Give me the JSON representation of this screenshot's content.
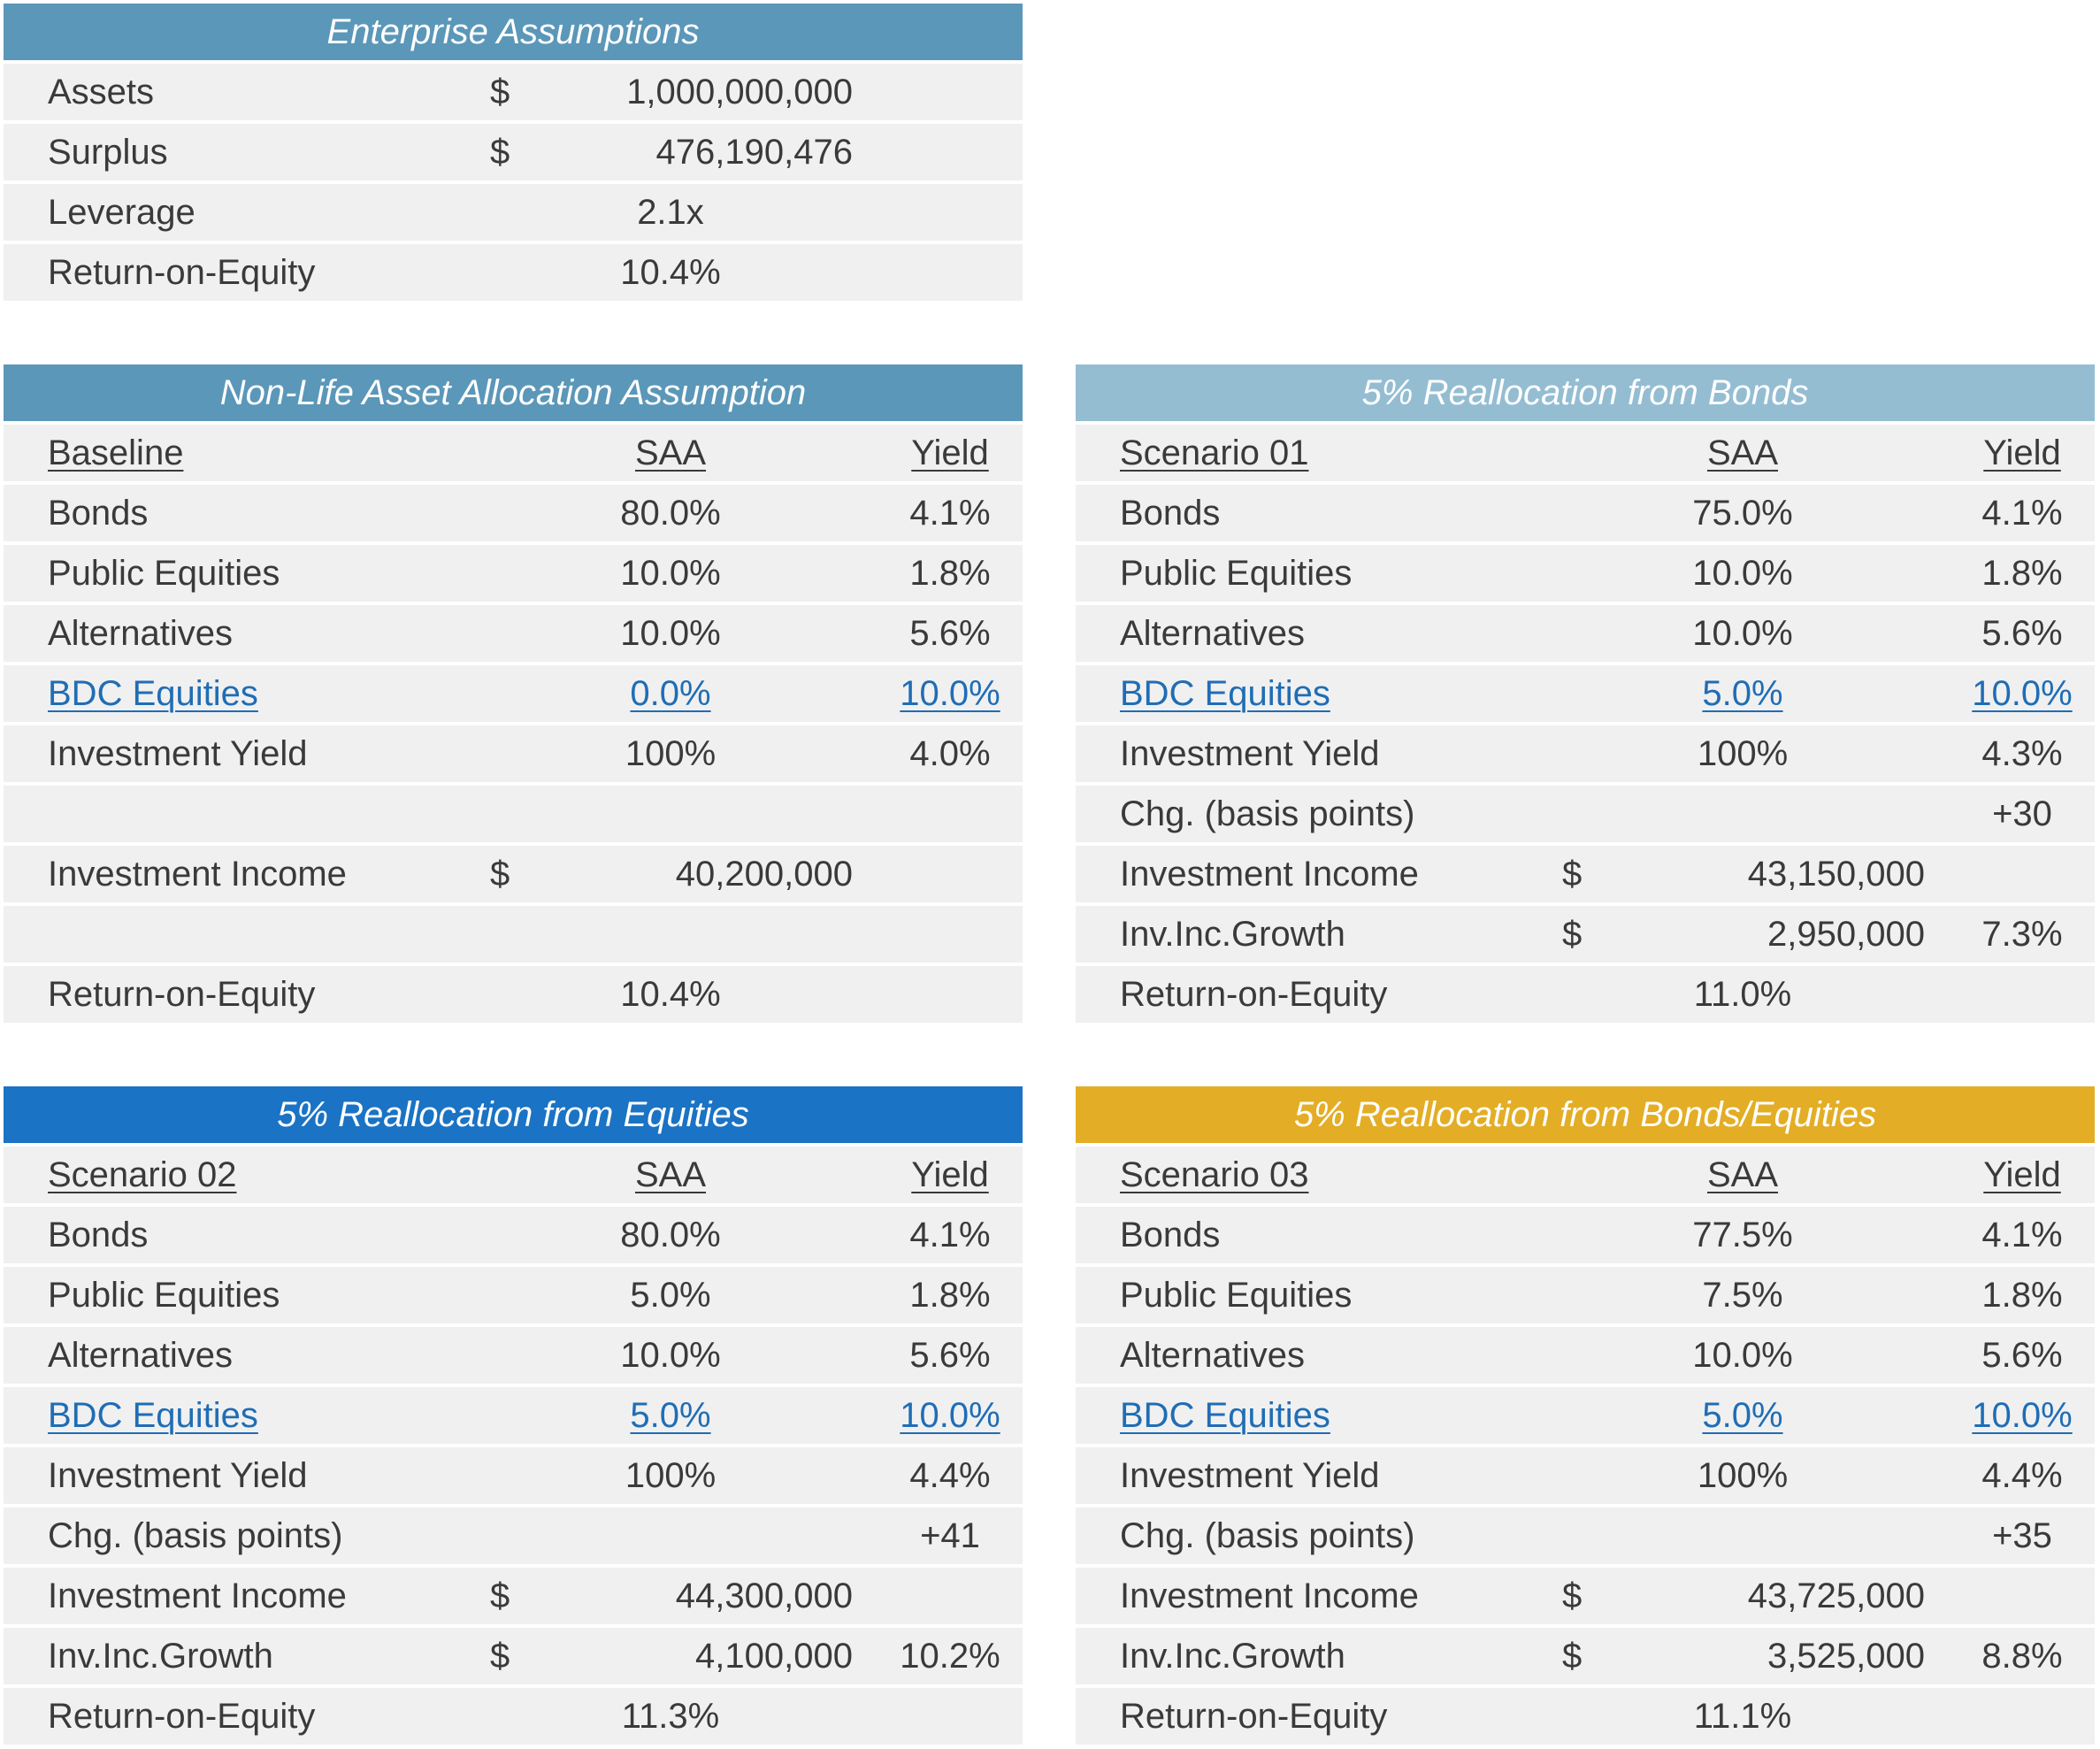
{
  "colors": {
    "header_blue_gray": "#5b97b8",
    "header_light": "#94bdd2",
    "header_blue": "#1a73c4",
    "header_gold": "#e3ad25",
    "cell_bg": "#f0f0f0",
    "link": "#1f6db5"
  },
  "enterprise": {
    "title": "Enterprise Assumptions",
    "rows": [
      {
        "label": "Assets",
        "cur": "$",
        "amount": "1,000,000,000"
      },
      {
        "label": "Surplus",
        "cur": "$",
        "amount": "476,190,476"
      },
      {
        "label": "Leverage",
        "value": "2.1x"
      },
      {
        "label": "Return-on-Equity",
        "value": "10.4%"
      }
    ]
  },
  "baseline": {
    "title": "Non-Life Asset Allocation Assumption",
    "head": {
      "label": "Baseline",
      "saa": "SAA",
      "yield": "Yield"
    },
    "rows": [
      {
        "label": "Bonds",
        "saa": "80.0%",
        "yield": "4.1%"
      },
      {
        "label": "Public Equities",
        "saa": "10.0%",
        "yield": "1.8%"
      },
      {
        "label": "Alternatives",
        "saa": "10.0%",
        "yield": "5.6%"
      },
      {
        "label": "BDC Equities",
        "saa": "0.0%",
        "yield": "10.0%"
      },
      {
        "label": "Investment Yield",
        "saa": "100%",
        "yield": "4.0%"
      }
    ],
    "income": {
      "label": "Investment Income",
      "cur": "$",
      "amount": "40,200,000"
    },
    "roe": {
      "label": "Return-on-Equity",
      "value": "10.4%"
    }
  },
  "scenario01": {
    "title": "5% Reallocation from Bonds",
    "head": {
      "label": "Scenario 01",
      "saa": "SAA",
      "yield": "Yield"
    },
    "rows": [
      {
        "label": "Bonds",
        "saa": "75.0%",
        "yield": "4.1%"
      },
      {
        "label": "Public Equities",
        "saa": "10.0%",
        "yield": "1.8%"
      },
      {
        "label": "Alternatives",
        "saa": "10.0%",
        "yield": "5.6%"
      },
      {
        "label": "BDC Equities",
        "saa": "5.0%",
        "yield": "10.0%"
      },
      {
        "label": "Investment Yield",
        "saa": "100%",
        "yield": "4.3%"
      }
    ],
    "chg": {
      "label": "Chg. (basis points)",
      "value": "+30"
    },
    "income": {
      "label": "Investment Income",
      "cur": "$",
      "amount": "43,150,000"
    },
    "growth": {
      "label": "Inv.Inc.Growth",
      "cur": "$",
      "amount": "2,950,000",
      "pct": "7.3%"
    },
    "roe": {
      "label": "Return-on-Equity",
      "value": "11.0%"
    }
  },
  "scenario02": {
    "title": "5% Reallocation from Equities",
    "head": {
      "label": "Scenario 02",
      "saa": "SAA",
      "yield": "Yield"
    },
    "rows": [
      {
        "label": "Bonds",
        "saa": "80.0%",
        "yield": "4.1%"
      },
      {
        "label": "Public Equities",
        "saa": "5.0%",
        "yield": "1.8%"
      },
      {
        "label": "Alternatives",
        "saa": "10.0%",
        "yield": "5.6%"
      },
      {
        "label": "BDC Equities",
        "saa": "5.0%",
        "yield": "10.0%"
      },
      {
        "label": "Investment Yield",
        "saa": "100%",
        "yield": "4.4%"
      }
    ],
    "chg": {
      "label": "Chg. (basis points)",
      "value": "+41"
    },
    "income": {
      "label": "Investment Income",
      "cur": "$",
      "amount": "44,300,000"
    },
    "growth": {
      "label": "Inv.Inc.Growth",
      "cur": "$",
      "amount": "4,100,000",
      "pct": "10.2%"
    },
    "roe": {
      "label": "Return-on-Equity",
      "value": "11.3%"
    }
  },
  "scenario03": {
    "title": "5% Reallocation from Bonds/Equities",
    "head": {
      "label": "Scenario 03",
      "saa": "SAA",
      "yield": "Yield"
    },
    "rows": [
      {
        "label": "Bonds",
        "saa": "77.5%",
        "yield": "4.1%"
      },
      {
        "label": "Public Equities",
        "saa": "7.5%",
        "yield": "1.8%"
      },
      {
        "label": "Alternatives",
        "saa": "10.0%",
        "yield": "5.6%"
      },
      {
        "label": "BDC Equities",
        "saa": "5.0%",
        "yield": "10.0%"
      },
      {
        "label": "Investment Yield",
        "saa": "100%",
        "yield": "4.4%"
      }
    ],
    "chg": {
      "label": "Chg. (basis points)",
      "value": "+35"
    },
    "income": {
      "label": "Investment Income",
      "cur": "$",
      "amount": "43,725,000"
    },
    "growth": {
      "label": "Inv.Inc.Growth",
      "cur": "$",
      "amount": "3,525,000",
      "pct": "8.8%"
    },
    "roe": {
      "label": "Return-on-Equity",
      "value": "11.1%"
    }
  }
}
